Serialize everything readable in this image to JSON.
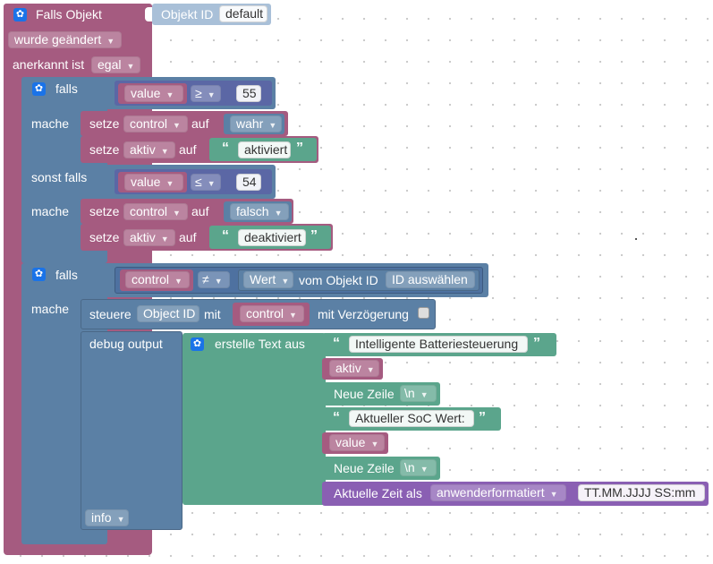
{
  "trigger": {
    "title": "Falls Objekt",
    "object_label": "Objekt ID",
    "object_value": "default",
    "changed_option": "wurde geändert",
    "ack_label": "anerkannt ist",
    "ack_option": "egal"
  },
  "if1": {
    "falls": "falls",
    "cond1": {
      "var": "value",
      "op": "≥",
      "num": "55"
    },
    "mache": "mache",
    "do1": [
      {
        "setze": "setze",
        "var": "control",
        "auf": "auf",
        "value": "wahr"
      },
      {
        "setze": "setze",
        "var": "aktiv",
        "auf": "auf",
        "value": "aktiviert"
      }
    ],
    "sonst_falls": "sonst falls",
    "cond2": {
      "var": "value",
      "op": "≤",
      "num": "54"
    },
    "mache2": "mache",
    "do2": [
      {
        "setze": "setze",
        "var": "control",
        "auf": "auf",
        "value": "falsch"
      },
      {
        "setze": "setze",
        "var": "aktiv",
        "auf": "auf",
        "value": "deaktiviert"
      }
    ]
  },
  "if2": {
    "falls": "falls",
    "cond": {
      "var": "control",
      "op": "≠",
      "wert": "Wert",
      "vom": "vom Objekt ID",
      "id": "ID auswählen"
    },
    "mache": "mache",
    "control": {
      "steuere": "steuere",
      "obj": "Object ID",
      "mit": "mit",
      "var": "control",
      "delay": "mit Verzögerung"
    },
    "debug": {
      "label": "debug output",
      "build": "erstelle Text aus",
      "items": [
        "Intelligente Batteriesteuerung",
        "aktiv",
        "Neue Zeile",
        "\\n",
        "Aktueller SoC Wert:",
        "value",
        "Neue Zeile",
        "\\n"
      ],
      "time_label": "Aktuelle Zeit als",
      "time_format": "anwenderformatiert",
      "time_pattern": "TT.MM.JJJJ SS:mm",
      "level": "info"
    }
  },
  "icons": {
    "gear": "gear-icon",
    "dropdown": "dropdown-arrow-icon",
    "quote_open": "“",
    "quote_close": "”"
  },
  "colors": {
    "event": "#a55b80",
    "logic": "#5b80a5",
    "text": "#5ba58c",
    "time": "#8a5fb3",
    "object": "#a9c0d8"
  }
}
